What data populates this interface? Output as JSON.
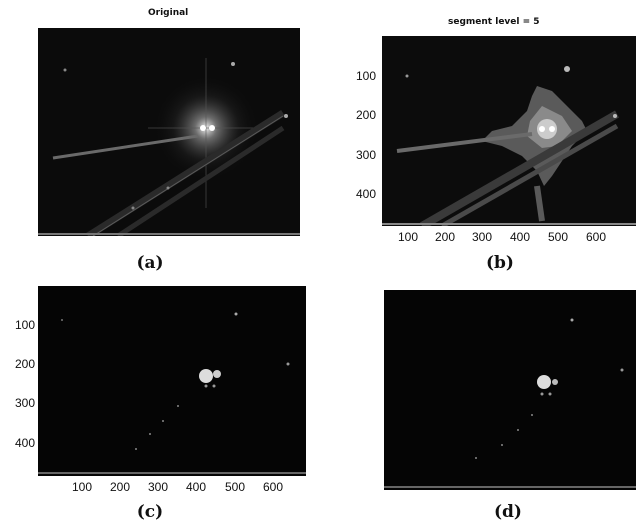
{
  "panels": [
    {
      "title": "Original",
      "caption": "(a)",
      "x_ticks": [],
      "y_ticks": [],
      "image_desc_icon": "night-traffic-light-photo"
    },
    {
      "title": "segment level  = 5",
      "caption": "(b)",
      "x_ticks": [
        "100",
        "200",
        "300",
        "400",
        "500",
        "600"
      ],
      "y_ticks": [
        "100",
        "200",
        "300",
        "400"
      ],
      "image_desc_icon": "segmented-light-photo"
    },
    {
      "title": "",
      "caption": "(c)",
      "x_ticks": [
        "100",
        "200",
        "300",
        "400",
        "500",
        "600"
      ],
      "y_ticks": [
        "100",
        "200",
        "300",
        "400"
      ],
      "image_desc_icon": "thresholded-light-photo"
    },
    {
      "title": "",
      "caption": "(d)",
      "x_ticks": [],
      "y_ticks": [],
      "image_desc_icon": "filtered-light-photo"
    }
  ],
  "colors": {
    "background": "#ffffff",
    "image_bg": "#000000",
    "segment_gray": "#5a5a5a",
    "segment_light": "#8a8a8a"
  }
}
